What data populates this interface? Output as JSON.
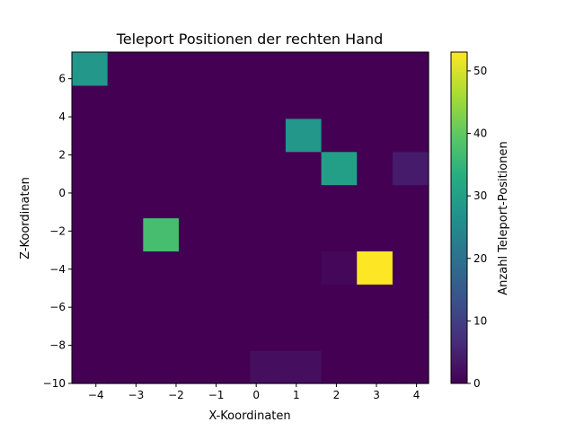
{
  "chart_data": {
    "type": "heatmap",
    "title": "Teleport Positionen der rechten Hand",
    "xlabel": "X-Koordinaten",
    "ylabel": "Z-Koordinaten",
    "colorbar_label": "Anzahl Teleport-Positionen",
    "colormap": "viridis",
    "xlim": [
      -4.6,
      4.3
    ],
    "ylim": [
      -10,
      7.4
    ],
    "clim": [
      0,
      53
    ],
    "x_ticks": [
      -4,
      -3,
      -2,
      -1,
      0,
      1,
      2,
      3,
      4
    ],
    "y_ticks": [
      -10,
      -8,
      -6,
      -4,
      -2,
      0,
      2,
      4,
      6
    ],
    "colorbar_ticks": [
      0,
      10,
      20,
      30,
      40,
      50
    ],
    "x_edges": [
      -4.6,
      -3.711,
      -2.822,
      -1.933,
      -1.044,
      -0.155,
      0.734,
      1.623,
      2.512,
      3.401,
      4.3
    ],
    "z_edges": [
      -10,
      -8.26,
      -6.52,
      -4.78,
      -3.04,
      -1.3,
      0.44,
      2.18,
      3.92,
      5.66,
      7.4
    ],
    "counts": [
      [
        0,
        0,
        0,
        0,
        0,
        2,
        2,
        0,
        0,
        0
      ],
      [
        0,
        0,
        0,
        0,
        0,
        0,
        0,
        0,
        0,
        0
      ],
      [
        0,
        0,
        0,
        0,
        0,
        0,
        0,
        0,
        0,
        0
      ],
      [
        0,
        0,
        0,
        0,
        0,
        0,
        0,
        1,
        53,
        0
      ],
      [
        0,
        0,
        37,
        0,
        0,
        0,
        0,
        0,
        0,
        0
      ],
      [
        0,
        0,
        0,
        0,
        0,
        0,
        0,
        0,
        0,
        0
      ],
      [
        0,
        0,
        0,
        0,
        0,
        0,
        0,
        30,
        0,
        4
      ],
      [
        0,
        0,
        0,
        0,
        0,
        0,
        28,
        0,
        0,
        0
      ],
      [
        0,
        0,
        0,
        0,
        0,
        0,
        0,
        0,
        0,
        0
      ],
      [
        28,
        0,
        0,
        0,
        0,
        0,
        0,
        0,
        0,
        0
      ]
    ]
  }
}
